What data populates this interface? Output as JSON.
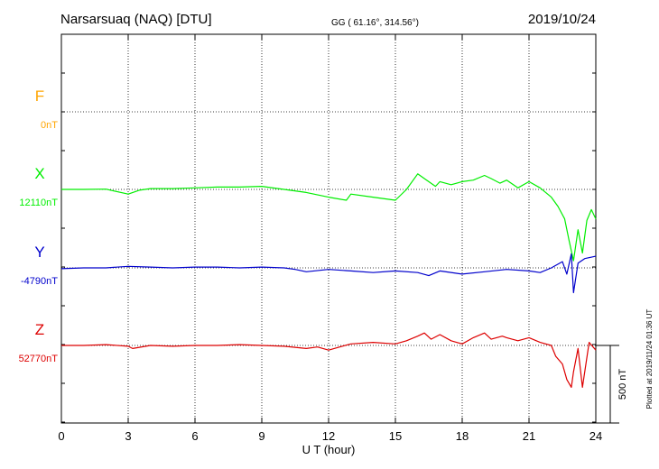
{
  "header": {
    "station": "Narsarsuaq (NAQ)  [DTU]",
    "coords": "GG ( 61.16°, 314.56°)",
    "date": "2019/10/24"
  },
  "plotted_note": "Plotted at 2019/11/24 01:36 UT",
  "scale_label": "500 nT",
  "colors": {
    "F": "#ffa500",
    "X": "#00ee00",
    "Y": "#0000cc",
    "Z": "#dd0000",
    "axes": "#000000"
  },
  "chart_data": {
    "type": "line",
    "xlabel": "U T (hour)",
    "xlim": [
      0,
      24
    ],
    "xticks": [
      "0",
      "3",
      "6",
      "9",
      "12",
      "15",
      "18",
      "21",
      "24"
    ],
    "grid": true,
    "scale_bar_nT": 500,
    "series": [
      {
        "name": "F",
        "baseline_label": "0nT",
        "x": [],
        "y": []
      },
      {
        "name": "X",
        "baseline_label": "12110nT",
        "x": [
          0,
          1,
          2,
          3,
          3.5,
          4,
          5,
          6,
          7,
          8,
          9,
          10,
          11,
          12,
          12.8,
          13,
          14,
          15,
          15.5,
          16,
          16.3,
          16.8,
          17,
          17.5,
          18,
          18.5,
          19,
          19.3,
          19.7,
          20,
          20.5,
          21,
          21.5,
          22,
          22.3,
          22.6,
          22.8,
          23,
          23.2,
          23.4,
          23.6,
          23.8,
          24
        ],
        "y": [
          12110,
          12110,
          12112,
          12080,
          12105,
          12115,
          12115,
          12120,
          12125,
          12125,
          12130,
          12110,
          12090,
          12060,
          12040,
          12080,
          12060,
          12040,
          12110,
          12210,
          12180,
          12130,
          12160,
          12140,
          12160,
          12170,
          12200,
          12180,
          12150,
          12170,
          12120,
          12160,
          12120,
          12060,
          12000,
          11920,
          11780,
          11650,
          11850,
          11700,
          11910,
          11980,
          11920
        ]
      },
      {
        "name": "Y",
        "baseline_label": "-4790nT",
        "x": [
          0,
          1,
          2,
          3,
          4,
          5,
          6,
          7,
          8,
          9,
          10,
          10.5,
          11,
          12,
          13,
          14,
          15,
          16,
          16.5,
          17,
          18,
          19,
          20,
          21,
          21.5,
          22,
          22.5,
          22.7,
          22.9,
          23,
          23.2,
          23.5,
          24
        ],
        "y": [
          -4795,
          -4790,
          -4790,
          -4780,
          -4785,
          -4790,
          -4785,
          -4785,
          -4790,
          -4785,
          -4790,
          -4800,
          -4815,
          -4800,
          -4810,
          -4820,
          -4810,
          -4820,
          -4840,
          -4810,
          -4830,
          -4815,
          -4800,
          -4810,
          -4820,
          -4790,
          -4750,
          -4830,
          -4700,
          -4950,
          -4760,
          -4730,
          -4715
        ]
      },
      {
        "name": "Z",
        "baseline_label": "52770nT",
        "x": [
          0,
          1,
          2,
          3,
          3.2,
          4,
          5,
          6,
          7,
          8,
          9,
          10,
          11,
          11.5,
          12,
          12.5,
          13,
          14,
          15,
          15.5,
          16,
          16.3,
          16.6,
          17,
          17.5,
          18,
          18.5,
          19,
          19.3,
          19.8,
          20,
          20.5,
          21,
          21.5,
          22,
          22.2,
          22.5,
          22.7,
          22.9,
          23,
          23.2,
          23.4,
          23.7,
          24
        ],
        "y": [
          52770,
          52770,
          52775,
          52765,
          52750,
          52770,
          52765,
          52770,
          52770,
          52775,
          52770,
          52765,
          52750,
          52760,
          52740,
          52760,
          52780,
          52790,
          52780,
          52800,
          52830,
          52850,
          52810,
          52840,
          52800,
          52780,
          52820,
          52850,
          52810,
          52830,
          52820,
          52800,
          52820,
          52790,
          52770,
          52700,
          52650,
          52550,
          52500,
          52600,
          52750,
          52500,
          52790,
          52740
        ]
      }
    ]
  }
}
